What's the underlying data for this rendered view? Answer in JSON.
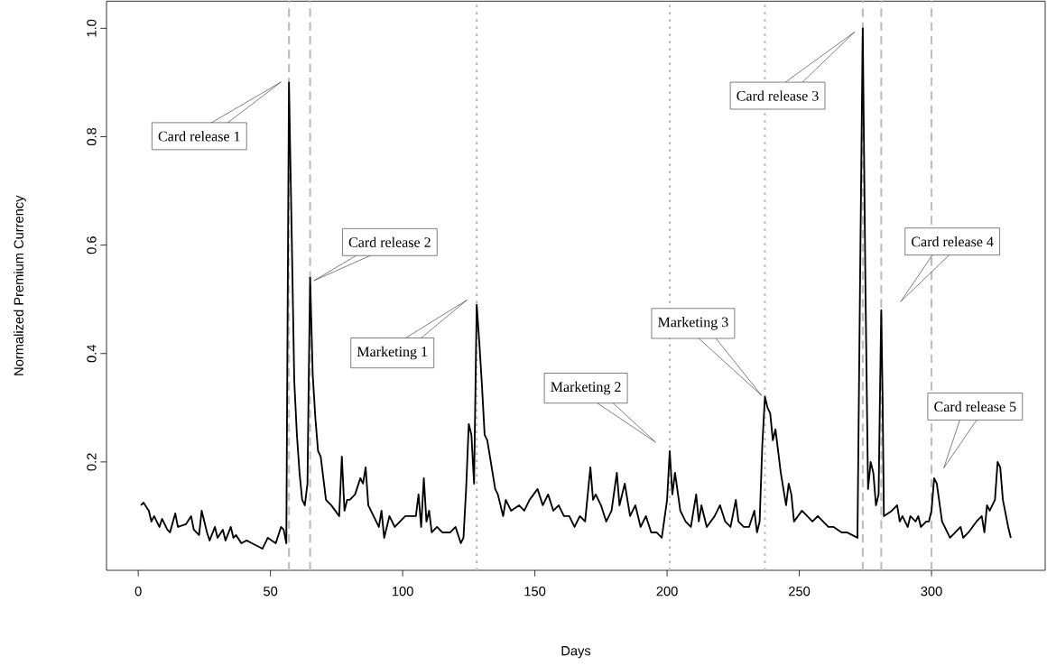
{
  "chart_data": {
    "type": "line",
    "xlabel": "Days",
    "ylabel": "Normalized Premium Currency",
    "xlim": [
      -12,
      343
    ],
    "ylim": [
      0,
      1.05
    ],
    "xticks": [
      0,
      50,
      100,
      150,
      200,
      250,
      300
    ],
    "yticks": [
      0.2,
      0.4,
      0.6,
      0.8,
      {
        "value": 1,
        "label": "1.0"
      }
    ],
    "marker": "none",
    "line_style": "solid",
    "color": "#000000",
    "x": [
      1,
      2,
      4,
      5,
      6,
      8,
      9,
      11,
      12,
      14,
      15,
      18,
      20,
      21,
      23,
      24,
      26,
      27,
      29,
      30,
      32,
      33,
      35,
      36,
      37,
      39,
      41,
      43,
      45,
      47,
      49,
      52,
      54,
      55,
      56,
      56.5,
      57,
      58,
      59,
      60,
      61,
      62,
      63,
      64,
      64.5,
      65,
      66,
      67,
      68,
      69,
      70,
      71,
      73,
      76,
      77,
      78,
      79,
      80,
      82,
      84,
      85,
      86,
      87,
      89,
      91,
      92,
      93,
      95,
      97,
      99,
      101,
      103,
      105,
      106,
      107,
      108,
      109,
      110,
      111,
      113,
      115,
      118,
      120,
      122,
      123,
      124,
      125,
      126,
      127,
      128,
      129,
      130,
      131,
      132,
      134,
      135,
      136,
      138,
      139,
      141,
      144,
      146,
      148,
      151,
      153,
      155,
      157,
      159,
      161,
      163,
      165,
      167,
      169,
      171,
      172,
      173,
      175,
      177,
      179,
      181,
      182,
      184,
      186,
      188,
      190,
      192,
      194,
      196,
      198,
      200,
      201,
      202,
      203,
      205,
      207,
      209,
      211,
      212,
      213,
      215,
      218,
      220,
      222,
      224,
      226,
      227,
      229,
      231,
      233,
      234,
      235,
      236,
      237,
      238,
      239,
      240,
      241,
      242,
      243,
      244,
      245,
      246,
      247,
      248,
      251,
      253,
      255,
      257,
      259,
      261,
      263,
      266,
      268,
      270,
      272,
      273,
      274,
      275,
      276,
      277,
      278,
      279,
      280,
      280.5,
      281,
      281.5,
      282,
      285,
      287,
      288,
      289,
      291,
      292,
      294,
      295,
      296,
      298,
      299,
      300,
      301,
      302,
      304,
      306,
      307,
      309,
      311,
      312,
      314,
      317,
      319,
      320,
      321,
      322,
      324,
      325,
      326,
      327,
      329,
      330
    ],
    "values": [
      0.12,
      0.125,
      0.11,
      0.09,
      0.1,
      0.08,
      0.095,
      0.075,
      0.07,
      0.105,
      0.08,
      0.085,
      0.1,
      0.075,
      0.065,
      0.11,
      0.07,
      0.055,
      0.08,
      0.06,
      0.075,
      0.055,
      0.08,
      0.06,
      0.065,
      0.05,
      0.055,
      0.05,
      0.045,
      0.04,
      0.06,
      0.05,
      0.08,
      0.075,
      0.05,
      0.48,
      0.9,
      0.63,
      0.35,
      0.25,
      0.18,
      0.13,
      0.12,
      0.16,
      0.36,
      0.54,
      0.36,
      0.28,
      0.22,
      0.21,
      0.17,
      0.13,
      0.12,
      0.1,
      0.21,
      0.11,
      0.13,
      0.13,
      0.14,
      0.17,
      0.16,
      0.19,
      0.12,
      0.1,
      0.08,
      0.11,
      0.06,
      0.1,
      0.08,
      0.09,
      0.1,
      0.1,
      0.1,
      0.14,
      0.08,
      0.17,
      0.09,
      0.11,
      0.07,
      0.08,
      0.07,
      0.07,
      0.08,
      0.05,
      0.06,
      0.15,
      0.27,
      0.25,
      0.16,
      0.49,
      0.42,
      0.34,
      0.25,
      0.24,
      0.18,
      0.15,
      0.14,
      0.1,
      0.13,
      0.11,
      0.12,
      0.11,
      0.13,
      0.15,
      0.12,
      0.14,
      0.11,
      0.12,
      0.1,
      0.1,
      0.08,
      0.1,
      0.09,
      0.19,
      0.13,
      0.14,
      0.12,
      0.09,
      0.11,
      0.18,
      0.12,
      0.16,
      0.1,
      0.12,
      0.08,
      0.1,
      0.07,
      0.07,
      0.06,
      0.13,
      0.22,
      0.14,
      0.18,
      0.11,
      0.09,
      0.08,
      0.14,
      0.09,
      0.12,
      0.08,
      0.1,
      0.12,
      0.09,
      0.08,
      0.13,
      0.09,
      0.08,
      0.08,
      0.11,
      0.07,
      0.09,
      0.23,
      0.32,
      0.3,
      0.29,
      0.24,
      0.26,
      0.22,
      0.18,
      0.15,
      0.12,
      0.16,
      0.14,
      0.09,
      0.11,
      0.1,
      0.09,
      0.1,
      0.09,
      0.08,
      0.08,
      0.07,
      0.07,
      0.065,
      0.06,
      0.54,
      1.0,
      0.53,
      0.15,
      0.2,
      0.18,
      0.12,
      0.14,
      0.32,
      0.48,
      0.32,
      0.1,
      0.11,
      0.12,
      0.09,
      0.1,
      0.08,
      0.1,
      0.09,
      0.1,
      0.08,
      0.09,
      0.09,
      0.11,
      0.17,
      0.16,
      0.09,
      0.07,
      0.06,
      0.07,
      0.08,
      0.06,
      0.07,
      0.09,
      0.1,
      0.07,
      0.12,
      0.11,
      0.13,
      0.2,
      0.19,
      0.13,
      0.08,
      0.06
    ],
    "ref_lines": [
      {
        "axis": "x",
        "value": 57,
        "color": "#bebebe",
        "line_style": "dashed"
      },
      {
        "axis": "x",
        "value": 65,
        "color": "#bebebe",
        "line_style": "dashed"
      },
      {
        "axis": "x",
        "value": 128,
        "color": "#bebebe",
        "line_style": "dotted"
      },
      {
        "axis": "x",
        "value": 201,
        "color": "#bebebe",
        "line_style": "dotted"
      },
      {
        "axis": "x",
        "value": 237,
        "color": "#bebebe",
        "line_style": "dotted"
      },
      {
        "axis": "x",
        "value": 274,
        "color": "#bebebe",
        "line_style": "dashed"
      },
      {
        "axis": "x",
        "value": 281,
        "color": "#bebebe",
        "line_style": "dashed"
      },
      {
        "axis": "x",
        "value": 300,
        "color": "#bebebe",
        "line_style": "dashed"
      }
    ],
    "annotations": [
      "Card release 1",
      "Card release 2",
      "Marketing 1",
      "Marketing 2",
      "Marketing 3",
      "Card release 3",
      "Card release 4",
      "Card release 5"
    ]
  }
}
